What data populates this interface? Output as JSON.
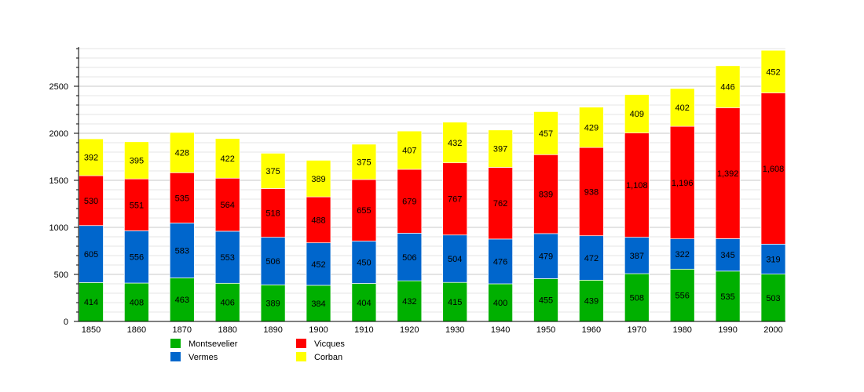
{
  "chart_data": {
    "type": "bar",
    "stacked": true,
    "categories": [
      "1850",
      "1860",
      "1870",
      "1880",
      "1890",
      "1900",
      "1910",
      "1920",
      "1930",
      "1940",
      "1950",
      "1960",
      "1970",
      "1980",
      "1990",
      "2000"
    ],
    "series": [
      {
        "name": "Montsevelier",
        "color": "#00b000",
        "values": [
          414,
          408,
          463,
          406,
          389,
          384,
          404,
          432,
          415,
          400,
          455,
          439,
          508,
          556,
          535,
          503
        ],
        "labels": [
          "414",
          "408",
          "463",
          "406",
          "389",
          "384",
          "404",
          "432",
          "415",
          "400",
          "455",
          "439",
          "508",
          "556",
          "535",
          "503"
        ]
      },
      {
        "name": "Vermes",
        "color": "#0066cc",
        "values": [
          605,
          556,
          583,
          553,
          506,
          452,
          450,
          506,
          504,
          476,
          479,
          472,
          387,
          322,
          345,
          319
        ],
        "labels": [
          "605",
          "556",
          "583",
          "553",
          "506",
          "452",
          "450",
          "506",
          "504",
          "476",
          "479",
          "472",
          "387",
          "322",
          "345",
          "319"
        ]
      },
      {
        "name": "Vicques",
        "color": "#ff0000",
        "values": [
          530,
          551,
          535,
          564,
          518,
          488,
          655,
          679,
          767,
          762,
          839,
          938,
          1108,
          1196,
          1392,
          1608
        ],
        "labels": [
          "530",
          "551",
          "535",
          "564",
          "518",
          "488",
          "655",
          "679",
          "767",
          "762",
          "839",
          "938",
          "1,108",
          "1,196",
          "1,392",
          "1,608"
        ]
      },
      {
        "name": "Corban",
        "color": "#ffff00",
        "values": [
          392,
          395,
          428,
          422,
          375,
          389,
          375,
          407,
          432,
          397,
          457,
          429,
          409,
          402,
          446,
          452
        ],
        "labels": [
          "392",
          "395",
          "428",
          "422",
          "375",
          "389",
          "375",
          "407",
          "432",
          "397",
          "457",
          "429",
          "409",
          "402",
          "446",
          "452"
        ]
      }
    ],
    "yticks": [
      "0",
      "500",
      "1000",
      "1500",
      "2000",
      "2500"
    ],
    "ylim": [
      0,
      2900
    ],
    "grid": true,
    "legend_placement": "bottom",
    "title": "",
    "xlabel": "",
    "ylabel": ""
  }
}
